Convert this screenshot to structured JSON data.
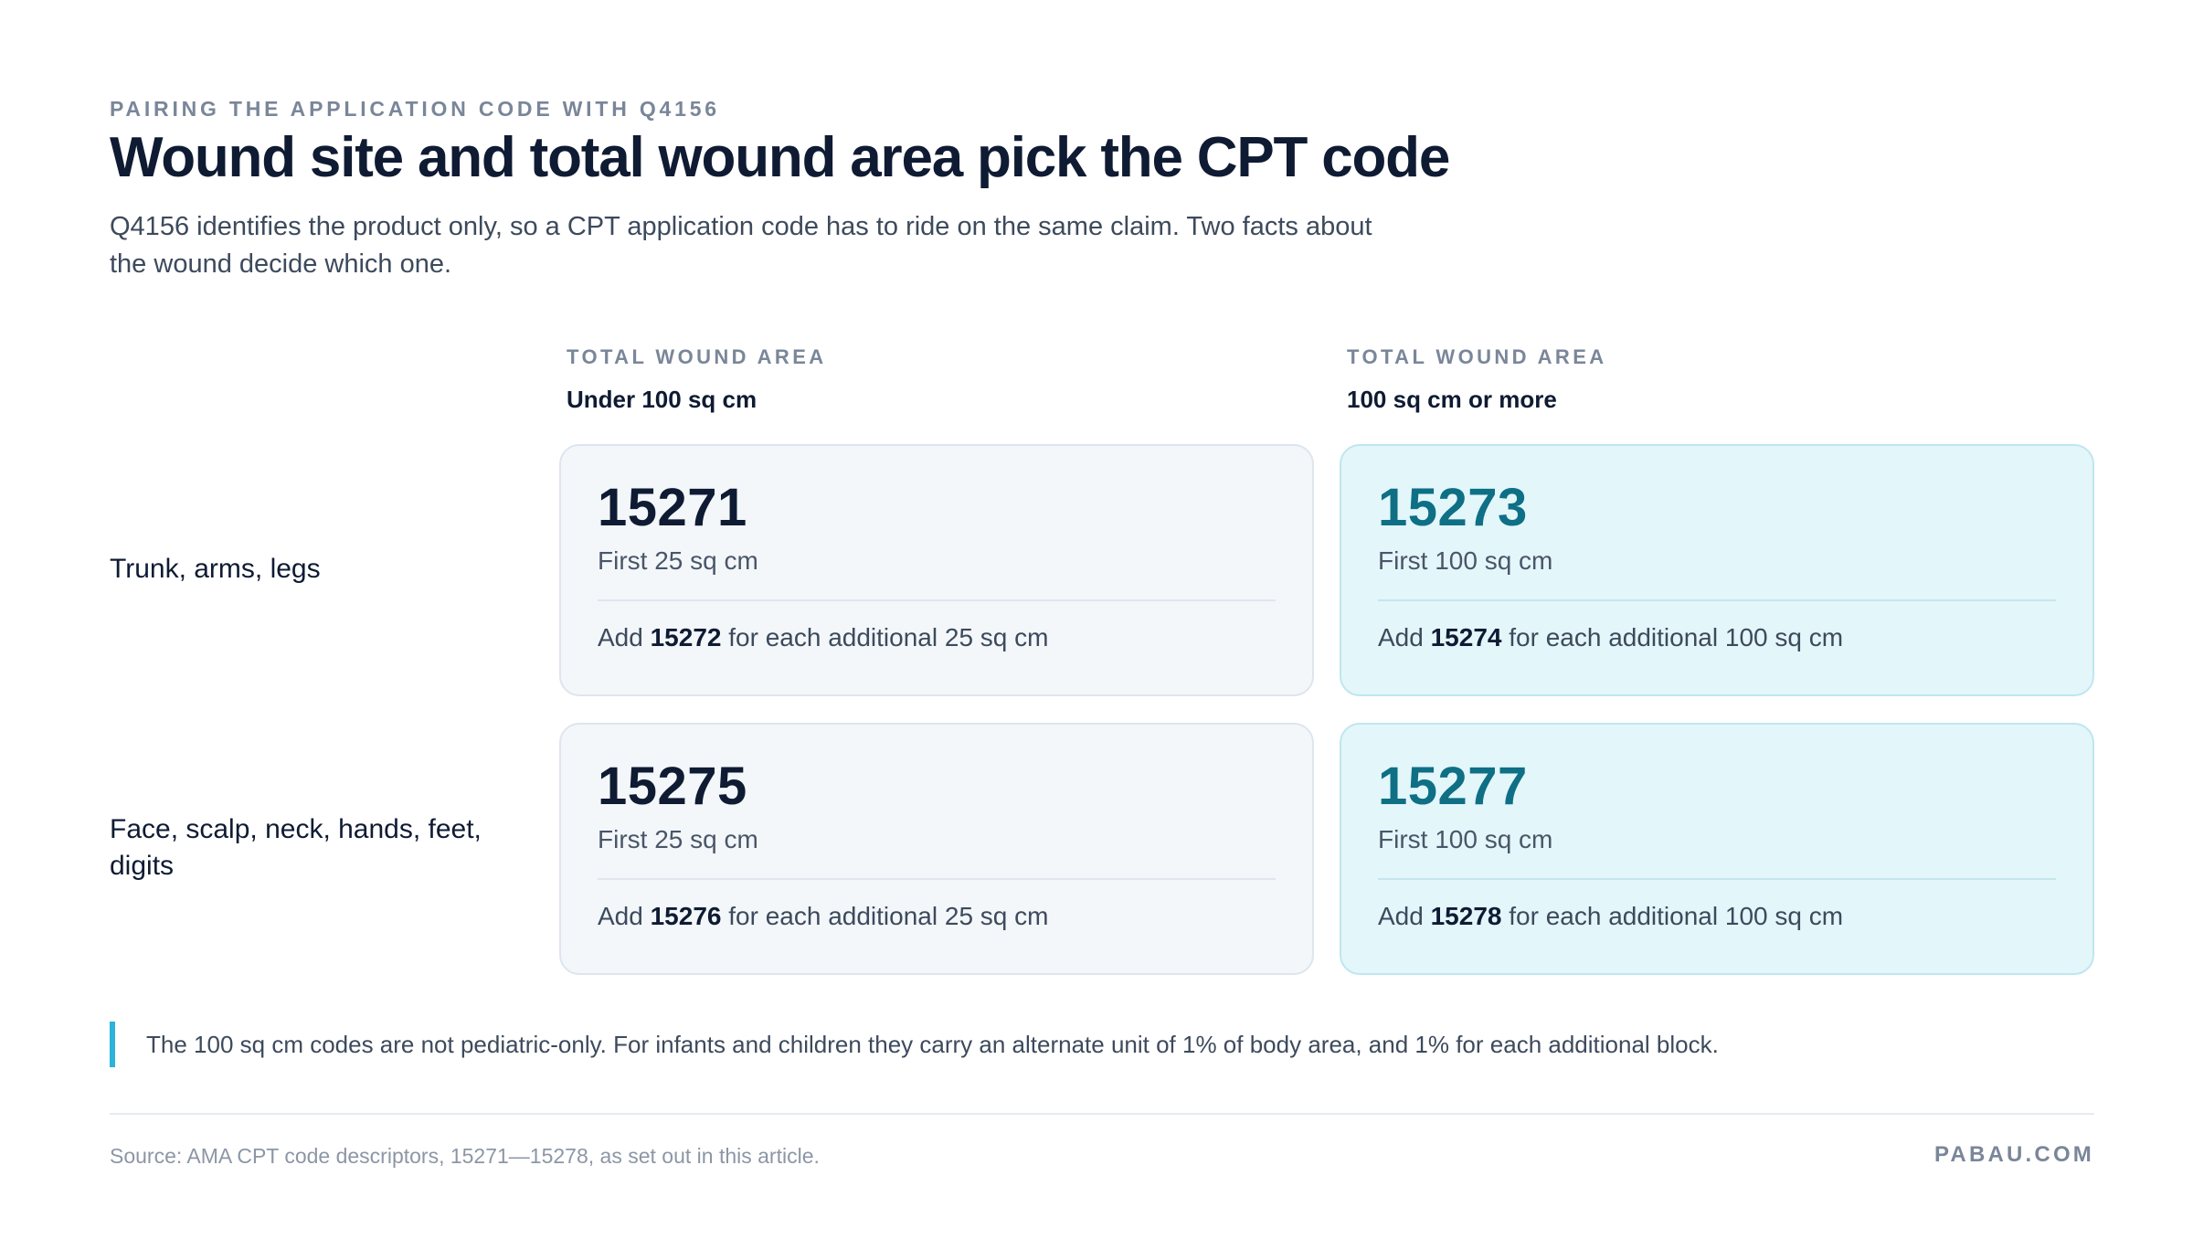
{
  "header": {
    "eyebrow": "PAIRING THE APPLICATION CODE WITH Q4156",
    "title": "Wound site and total wound area pick the CPT code",
    "subtitle": "Q4156 identifies the product only, so a CPT application code has to ride on the same claim. Two facts about the wound decide which one."
  },
  "columns": [
    {
      "kicker": "TOTAL WOUND AREA",
      "range": "Under 100 sq cm"
    },
    {
      "kicker": "TOTAL WOUND AREA",
      "range": "100 sq cm or more"
    }
  ],
  "rows": [
    {
      "label": "Trunk, arms, legs",
      "cells": [
        {
          "code": "15271",
          "first": "First 25 sq cm",
          "add_prefix": "Add ",
          "add_code": "15272",
          "add_suffix": " for each additional 25 sq cm"
        },
        {
          "code": "15273",
          "first": "First 100 sq cm",
          "add_prefix": "Add ",
          "add_code": "15274",
          "add_suffix": " for each additional 100 sq cm"
        }
      ]
    },
    {
      "label": "Face, scalp, neck, hands, feet, digits",
      "cells": [
        {
          "code": "15275",
          "first": "First 25 sq cm",
          "add_prefix": "Add ",
          "add_code": "15276",
          "add_suffix": " for each additional 25 sq cm"
        },
        {
          "code": "15277",
          "first": "First 100 sq cm",
          "add_prefix": "Add ",
          "add_code": "15278",
          "add_suffix": " for each additional 100 sq cm"
        }
      ]
    }
  ],
  "note": "The 100 sq cm codes are not pediatric-only. For infants and children they carry an alternate unit of 1% of body area, and 1% for each additional block.",
  "footer": {
    "source": "Source: AMA CPT code descriptors, 15271—15278, as set out in this article.",
    "brand": "PABAU.COM"
  },
  "colors": {
    "accent": "#2bb3d9",
    "teal_code": "#0e6f85",
    "navy": "#0f1b33"
  }
}
